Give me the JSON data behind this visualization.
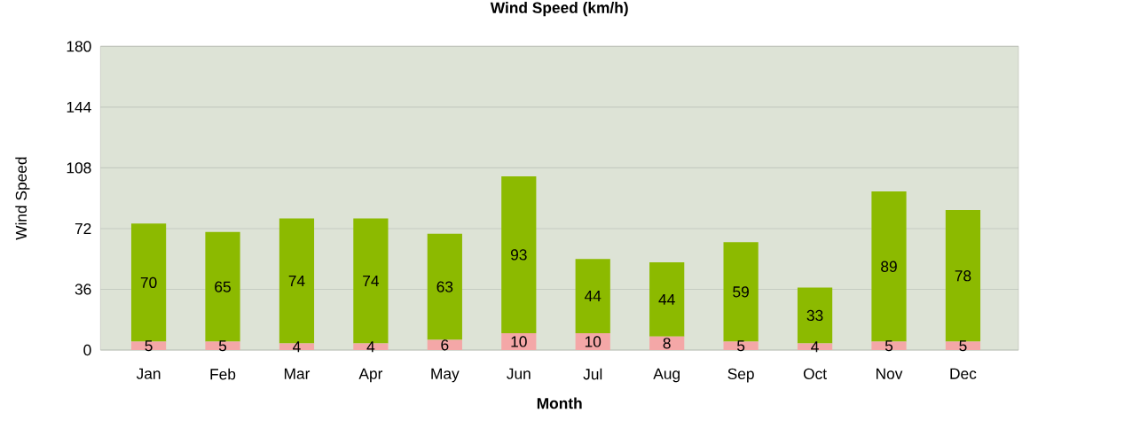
{
  "chart_data": {
    "type": "bar",
    "title": "Wind Speed (km/h)",
    "xlabel": "Month",
    "ylabel": "Wind Speed",
    "categories": [
      "Jan",
      "Feb",
      "Mar",
      "Apr",
      "May",
      "Jun",
      "Jul",
      "Aug",
      "Sep",
      "Oct",
      "Nov",
      "Dec"
    ],
    "stacked": true,
    "series": [
      {
        "color": "#f4a7a7",
        "values": [
          5,
          5,
          4,
          4,
          6,
          10,
          10,
          8,
          5,
          4,
          5,
          5
        ]
      },
      {
        "color": "#8cba00",
        "values": [
          70,
          65,
          74,
          74,
          63,
          93,
          44,
          44,
          59,
          33,
          89,
          78
        ]
      }
    ],
    "ylim": [
      0,
      180
    ],
    "yticks": [
      0,
      36,
      72,
      108,
      144,
      180
    ],
    "grid": "y",
    "data_labels": true
  }
}
